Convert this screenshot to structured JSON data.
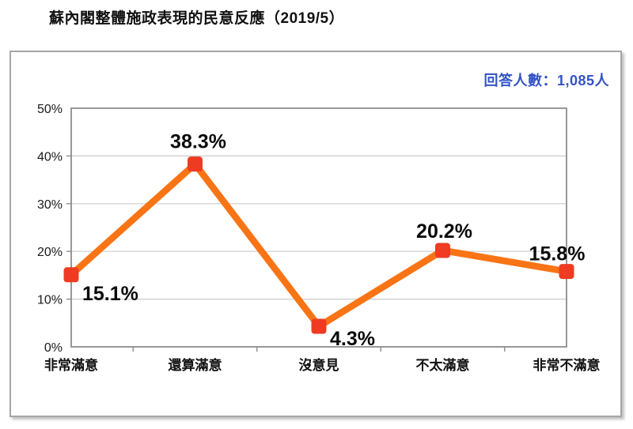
{
  "page": {
    "title": "蘇內閣整體施政表現的民意反應（2019/5）"
  },
  "respondents_label": "回答人數：1,085人",
  "chart_data": {
    "type": "line",
    "title": "蘇內閣整體施政表現的民意反應（2019/5）",
    "categories": [
      "非常滿意",
      "還算滿意",
      "沒意見",
      "不太滿意",
      "非常不滿意"
    ],
    "values": [
      15.1,
      38.3,
      4.3,
      20.2,
      15.8
    ],
    "value_labels": [
      "15.1%",
      "38.3%",
      "4.3%",
      "20.2%",
      "15.8%"
    ],
    "y_ticks": [
      "0%",
      "10%",
      "20%",
      "30%",
      "40%",
      "50%"
    ],
    "ylim": [
      0,
      50
    ],
    "y_step": 10,
    "grid": true,
    "legend": false,
    "annotation": "回答人數：1,085人",
    "colors": {
      "line": "#F97415",
      "marker": "#EE3B22",
      "gridline": "#cccccc",
      "plot_border": "#8c8c8c",
      "annotation_text": "#3353c6",
      "label_text": "#0a0a0a"
    }
  }
}
